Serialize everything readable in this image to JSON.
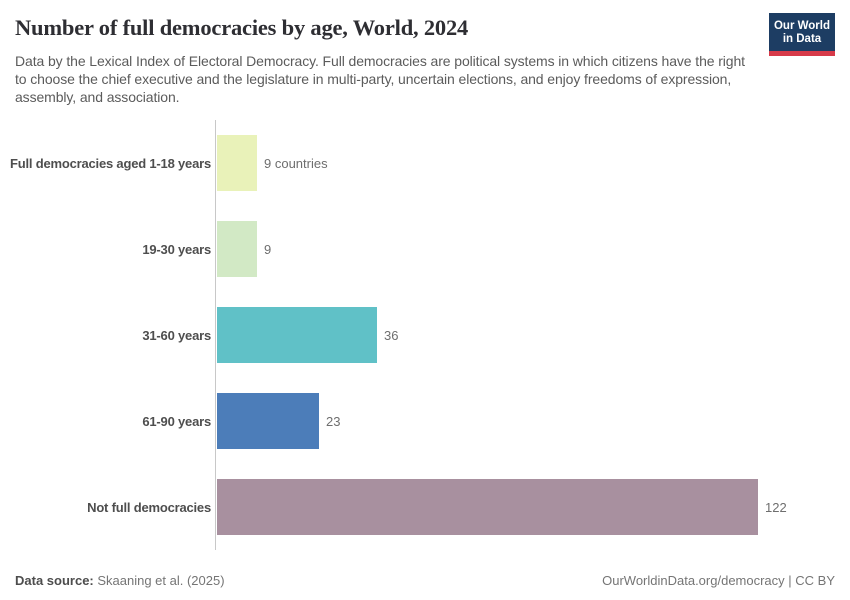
{
  "header": {
    "title": "Number of full democracies by age, World, 2024",
    "subtitle": "Data by the Lexical Index of Electoral Democracy. Full democracies are political systems in which citizens have the right to choose the chief executive and the legislature in multi-party, uncertain elections, and enjoy freedoms of expression, assembly, and association.",
    "logo": {
      "line1": "Our World",
      "line2": "in Data",
      "bg_color": "#1d3d63",
      "accent_color": "#d73a49"
    }
  },
  "chart_data": {
    "type": "bar",
    "orientation": "horizontal",
    "title": "Number of full democracies by age, World, 2024",
    "categories": [
      "Full democracies aged 1-18 years",
      "19-30 years",
      "31-60 years",
      "61-90 years",
      "Not full democracies"
    ],
    "values": [
      9,
      9,
      36,
      23,
      122
    ],
    "value_labels": [
      "9 countries",
      "9",
      "36",
      "23",
      "122"
    ],
    "bar_colors": [
      "#e9f2b9",
      "#d2e9c5",
      "#60c1c7",
      "#4c7db9",
      "#a8909f"
    ],
    "xlim": [
      0,
      122
    ],
    "grid": false,
    "legend": "none",
    "axis_color": "#c8c8c8",
    "unit": "countries"
  },
  "footer": {
    "datasource_label": "Data source:",
    "datasource_value": " Skaaning et al. (2025)",
    "attribution": "OurWorldinData.org/democracy | CC BY"
  }
}
